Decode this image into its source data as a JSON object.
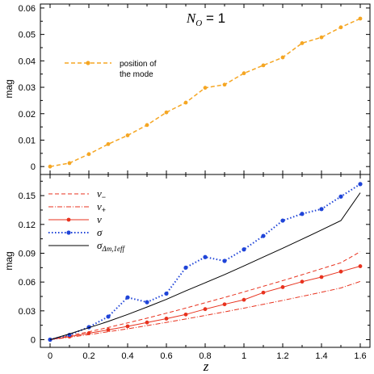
{
  "chart_data": [
    {
      "type": "line",
      "title": "N_O = 1",
      "title_main": "N",
      "title_sub": "O",
      "title_rest": " = 1",
      "xlabel": "",
      "ylabel": "mag",
      "xlim": [
        -0.05,
        1.65
      ],
      "ylim": [
        -0.003,
        0.0615
      ],
      "x": [
        0.0,
        0.1,
        0.2,
        0.3,
        0.4,
        0.5,
        0.6,
        0.7,
        0.8,
        0.9,
        1.0,
        1.1,
        1.2,
        1.3,
        1.4,
        1.5,
        1.6
      ],
      "xticks": [
        "0",
        "0.2",
        "0.4",
        "0.6",
        "0.8",
        "1",
        "1.2",
        "1.4",
        "1.6"
      ],
      "xtick_values": [
        0,
        0.2,
        0.4,
        0.6,
        0.8,
        1.0,
        1.2,
        1.4,
        1.6
      ],
      "yticks": [
        "0",
        "0.01",
        "0.02",
        "0.03",
        "0.04",
        "0.05",
        "0.06"
      ],
      "ytick_values": [
        0,
        0.01,
        0.02,
        0.03,
        0.04,
        0.05,
        0.06
      ],
      "grid": false,
      "legend": "center-left",
      "series": [
        {
          "name": "position of the mode",
          "name_line1": "position of",
          "name_line2": "the mode",
          "color": "#f5a623",
          "style": "dashed",
          "marker": "circle",
          "values": [
            0.0,
            0.0013,
            0.0047,
            0.0085,
            0.0118,
            0.0157,
            0.0205,
            0.0242,
            0.0298,
            0.031,
            0.0353,
            0.0383,
            0.0413,
            0.0467,
            0.0489,
            0.0527,
            0.056
          ]
        }
      ]
    },
    {
      "type": "line",
      "title": "",
      "xlabel": "z",
      "ylabel": "mag",
      "xlim": [
        -0.05,
        1.65
      ],
      "ylim": [
        -0.008,
        0.172
      ],
      "x": [
        0.0,
        0.1,
        0.2,
        0.3,
        0.4,
        0.5,
        0.6,
        0.7,
        0.8,
        0.9,
        1.0,
        1.1,
        1.2,
        1.3,
        1.4,
        1.5,
        1.6
      ],
      "xticks": [
        "0",
        "0.2",
        "0.4",
        "0.6",
        "0.8",
        "1",
        "1.2",
        "1.4",
        "1.6"
      ],
      "xtick_values": [
        0,
        0.2,
        0.4,
        0.6,
        0.8,
        1.0,
        1.2,
        1.4,
        1.6
      ],
      "yticks": [
        "0",
        "0.03",
        "0.06",
        "0.09",
        "0.12",
        "0.15"
      ],
      "ytick_values": [
        0,
        0.03,
        0.06,
        0.09,
        0.12,
        0.15
      ],
      "grid": false,
      "legend": "top-left",
      "series": [
        {
          "name": "v−",
          "label_main": "v",
          "label_sub": "−",
          "color": "#e8321e",
          "style": "dashed",
          "marker": "none",
          "values": [
            0.0,
            0.004,
            0.0082,
            0.0127,
            0.0175,
            0.0224,
            0.0276,
            0.0329,
            0.0384,
            0.044,
            0.0497,
            0.0556,
            0.0615,
            0.0676,
            0.0738,
            0.0801,
            0.0916
          ]
        },
        {
          "name": "v+",
          "label_main": "v",
          "label_sub": "+",
          "color": "#e8321e",
          "style": "dashdot",
          "marker": "none",
          "values": [
            0.0,
            0.0025,
            0.0052,
            0.0082,
            0.0113,
            0.0146,
            0.018,
            0.0215,
            0.0252,
            0.0289,
            0.0328,
            0.0368,
            0.0409,
            0.0451,
            0.0494,
            0.0538,
            0.0606
          ]
        },
        {
          "name": "v",
          "label_main": "v",
          "label_sub": "",
          "color": "#e8321e",
          "style": "solid",
          "marker": "circle",
          "values": [
            0.0,
            0.0032,
            0.0067,
            0.0102,
            0.0139,
            0.0179,
            0.0219,
            0.0262,
            0.0318,
            0.0368,
            0.0415,
            0.049,
            0.0547,
            0.0604,
            0.0652,
            0.0709,
            0.0765
          ]
        },
        {
          "name": "σ",
          "label_main": "σ",
          "label_sub": "",
          "color": "#1f44d8",
          "style": "dotted",
          "marker": "circle",
          "values": [
            0.0,
            0.005,
            0.013,
            0.024,
            0.044,
            0.039,
            0.048,
            0.075,
            0.086,
            0.082,
            0.094,
            0.108,
            0.124,
            0.131,
            0.136,
            0.149,
            0.162
          ]
        },
        {
          "name": "σ_Δm,1eff",
          "label_main": "σ",
          "label_sub": "Δm,1eff",
          "color": "#000000",
          "style": "solid",
          "marker": "none",
          "values": [
            0.0,
            0.006,
            0.0124,
            0.019,
            0.0262,
            0.034,
            0.042,
            0.0508,
            0.0592,
            0.0678,
            0.0768,
            0.086,
            0.0952,
            0.1046,
            0.1142,
            0.124,
            0.153
          ]
        }
      ]
    }
  ]
}
